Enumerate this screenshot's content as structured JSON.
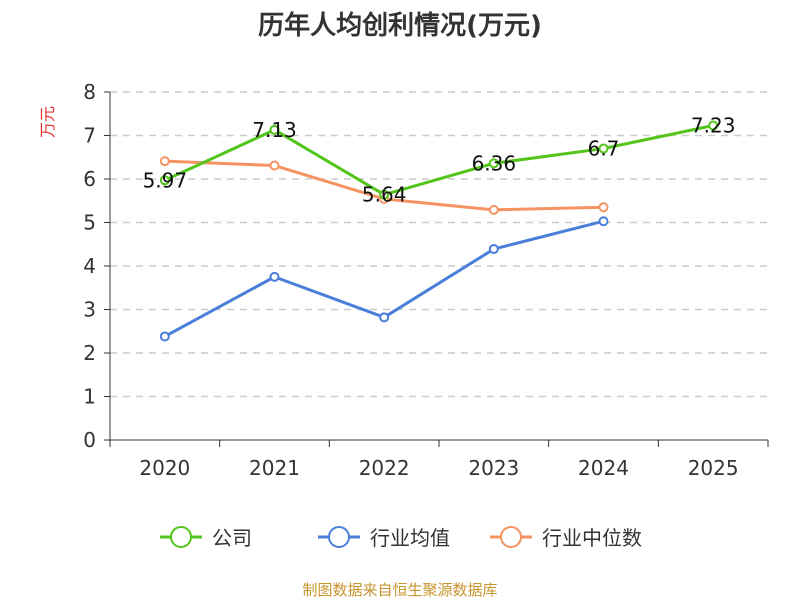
{
  "chart_data": {
    "type": "line",
    "title": "历年人均创利情况(万元)",
    "ylabel": "万元",
    "categories": [
      "2020",
      "2021",
      "2022",
      "2023",
      "2024",
      "2025"
    ],
    "ylim": [
      0,
      8
    ],
    "yticks": [
      0,
      1,
      2,
      3,
      4,
      5,
      6,
      7,
      8
    ],
    "grid": true,
    "legend_position": "bottom",
    "series": [
      {
        "name": "公司",
        "color": "#52c41a",
        "values": [
          5.97,
          7.13,
          5.64,
          6.36,
          6.7,
          7.23
        ],
        "labels": [
          "5.97",
          "7.13",
          "5.64",
          "6.36",
          "6.7",
          "7.23"
        ]
      },
      {
        "name": "行业均值",
        "color": "#4a7fd9",
        "values": [
          2.38,
          3.75,
          2.82,
          4.39,
          5.03,
          null
        ]
      },
      {
        "name": "行业中位数",
        "color": "#f59362",
        "values": [
          6.41,
          6.31,
          5.54,
          5.29,
          5.35,
          null
        ]
      }
    ],
    "source": "制图数据来自恒生聚源数据库"
  }
}
